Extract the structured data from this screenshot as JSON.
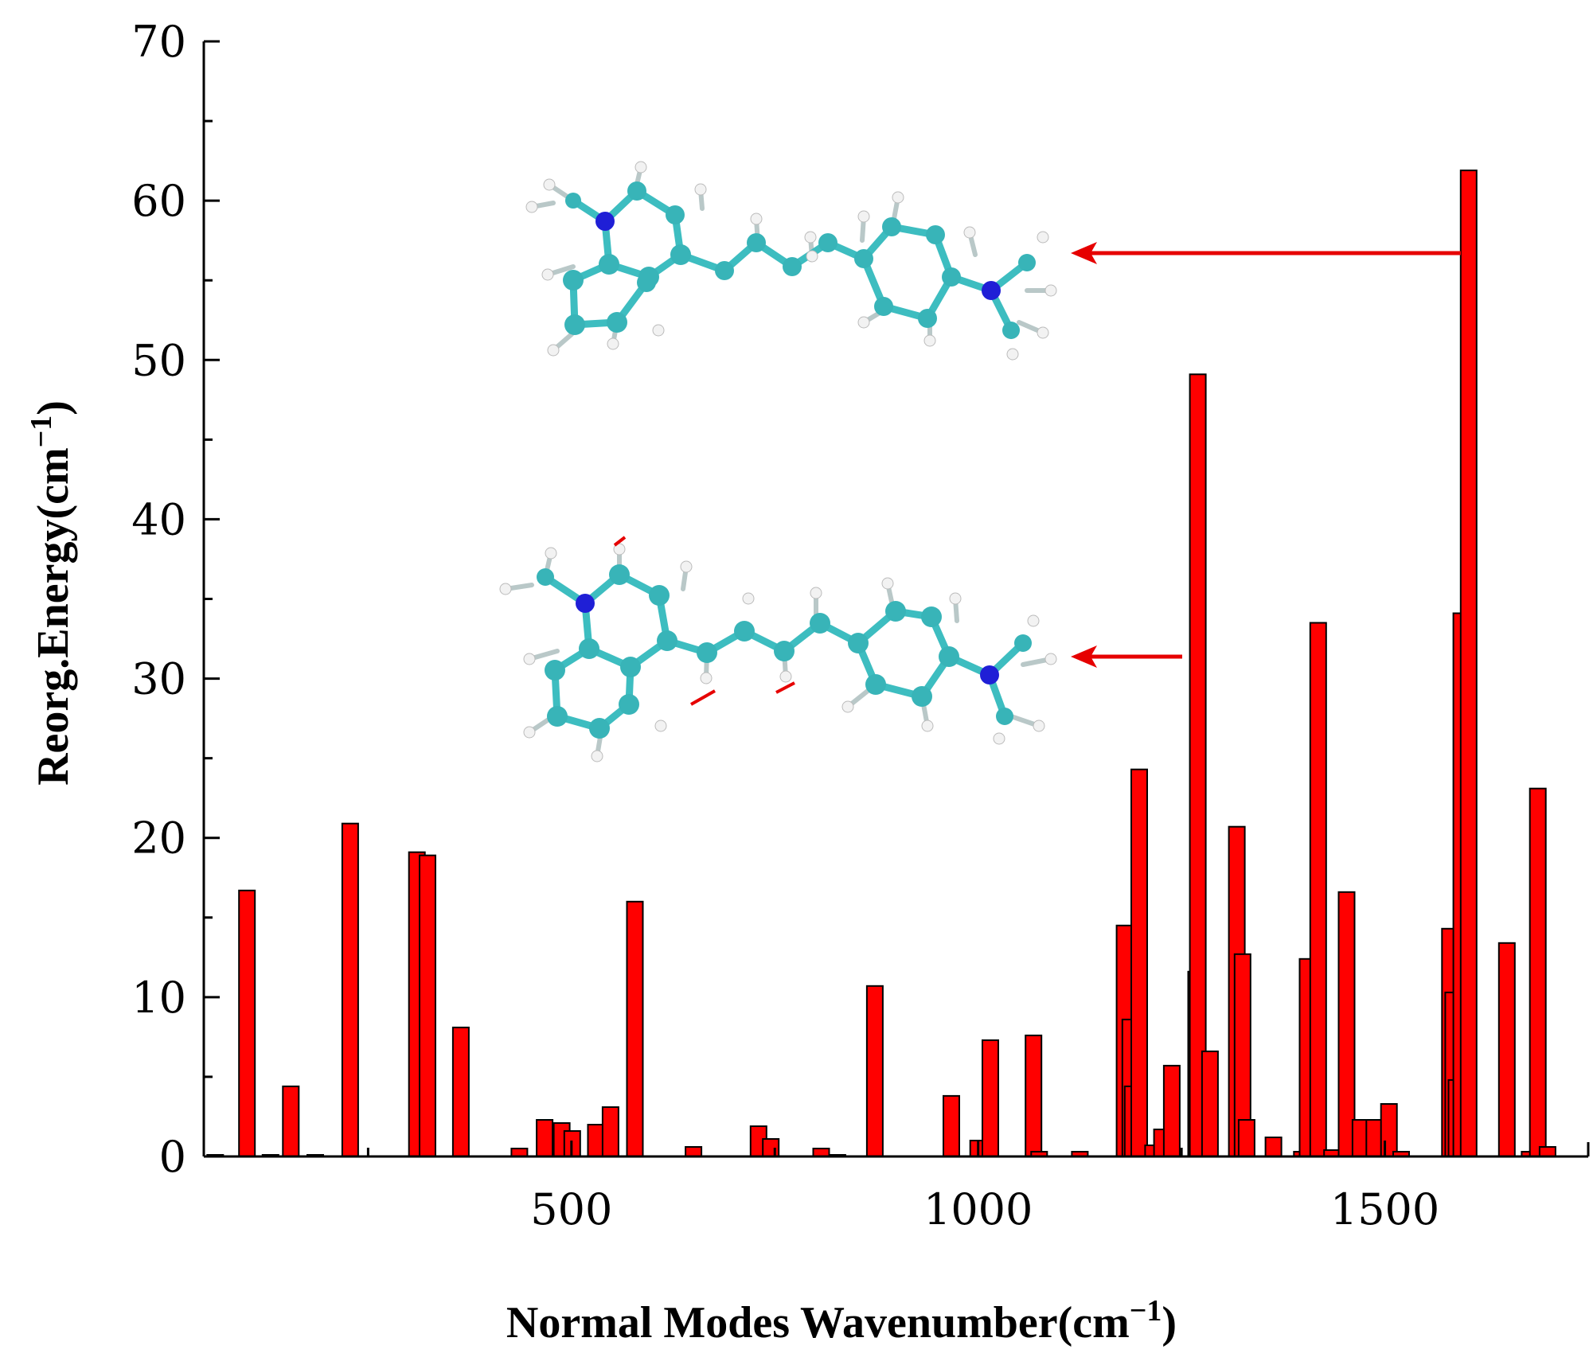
{
  "chart_data": {
    "type": "bar",
    "xlabel": "Normal Modes Wavenumber(cm",
    "xlabel_sup": "−1",
    "xlabel_end": ")",
    "ylabel": "Reorg.Energy(cm",
    "ylabel_sup": "−1",
    "ylabel_end": ")",
    "xlim": [
      48,
      1750
    ],
    "ylim": [
      0,
      70
    ],
    "x_ticks": [
      500,
      1000,
      1500
    ],
    "x_tick_labels": [
      "500",
      "1000",
      "1500"
    ],
    "y_ticks": [
      0,
      10,
      20,
      30,
      40,
      50,
      60,
      70
    ],
    "y_tick_labels": [
      "0",
      "10",
      "20",
      "30",
      "40",
      "50",
      "60",
      "70"
    ],
    "bar_color": "#ff0000",
    "arrow_color": "#e60000",
    "bars": [
      {
        "x": 62,
        "y": 0.1
      },
      {
        "x": 101,
        "y": 16.7
      },
      {
        "x": 130,
        "y": 0.1
      },
      {
        "x": 155,
        "y": 4.4
      },
      {
        "x": 185,
        "y": 0.1
      },
      {
        "x": 228,
        "y": 20.9
      },
      {
        "x": 310,
        "y": 19.1
      },
      {
        "x": 323,
        "y": 18.9
      },
      {
        "x": 364,
        "y": 8.1
      },
      {
        "x": 436,
        "y": 0.5
      },
      {
        "x": 467,
        "y": 2.3
      },
      {
        "x": 488,
        "y": 2.1
      },
      {
        "x": 501,
        "y": 1.6
      },
      {
        "x": 530,
        "y": 2.0
      },
      {
        "x": 548,
        "y": 3.1
      },
      {
        "x": 578,
        "y": 16.0
      },
      {
        "x": 650,
        "y": 0.6
      },
      {
        "x": 730,
        "y": 1.9
      },
      {
        "x": 745,
        "y": 1.1
      },
      {
        "x": 807,
        "y": 0.5
      },
      {
        "x": 827,
        "y": 0.1
      },
      {
        "x": 873,
        "y": 10.7
      },
      {
        "x": 967,
        "y": 3.8
      },
      {
        "x": 1000,
        "y": 1.0
      },
      {
        "x": 1015,
        "y": 7.3
      },
      {
        "x": 1068,
        "y": 7.6
      },
      {
        "x": 1075,
        "y": 0.3
      },
      {
        "x": 1125,
        "y": 0.3
      },
      {
        "x": 1180,
        "y": 14.5
      },
      {
        "x": 1187,
        "y": 8.6
      },
      {
        "x": 1190,
        "y": 4.4
      },
      {
        "x": 1198,
        "y": 24.3
      },
      {
        "x": 1215,
        "y": 0.7
      },
      {
        "x": 1226,
        "y": 1.7
      },
      {
        "x": 1238,
        "y": 5.7
      },
      {
        "x": 1268,
        "y": 11.6
      },
      {
        "x": 1270,
        "y": 49.1
      },
      {
        "x": 1285,
        "y": 6.6
      },
      {
        "x": 1318,
        "y": 20.7
      },
      {
        "x": 1325,
        "y": 12.7
      },
      {
        "x": 1330,
        "y": 2.3
      },
      {
        "x": 1363,
        "y": 1.2
      },
      {
        "x": 1398,
        "y": 0.3
      },
      {
        "x": 1405,
        "y": 12.4
      },
      {
        "x": 1418,
        "y": 33.5
      },
      {
        "x": 1435,
        "y": 0.4
      },
      {
        "x": 1453,
        "y": 16.6
      },
      {
        "x": 1470,
        "y": 2.3
      },
      {
        "x": 1487,
        "y": 2.3
      },
      {
        "x": 1505,
        "y": 3.3
      },
      {
        "x": 1520,
        "y": 0.3
      },
      {
        "x": 1580,
        "y": 14.3
      },
      {
        "x": 1584,
        "y": 10.3
      },
      {
        "x": 1588,
        "y": 4.8
      },
      {
        "x": 1594,
        "y": 34.1
      },
      {
        "x": 1603,
        "y": 61.9
      },
      {
        "x": 1650,
        "y": 13.4
      },
      {
        "x": 1678,
        "y": 0.3
      },
      {
        "x": 1688,
        "y": 23.1
      },
      {
        "x": 1700,
        "y": 0.6
      }
    ]
  }
}
